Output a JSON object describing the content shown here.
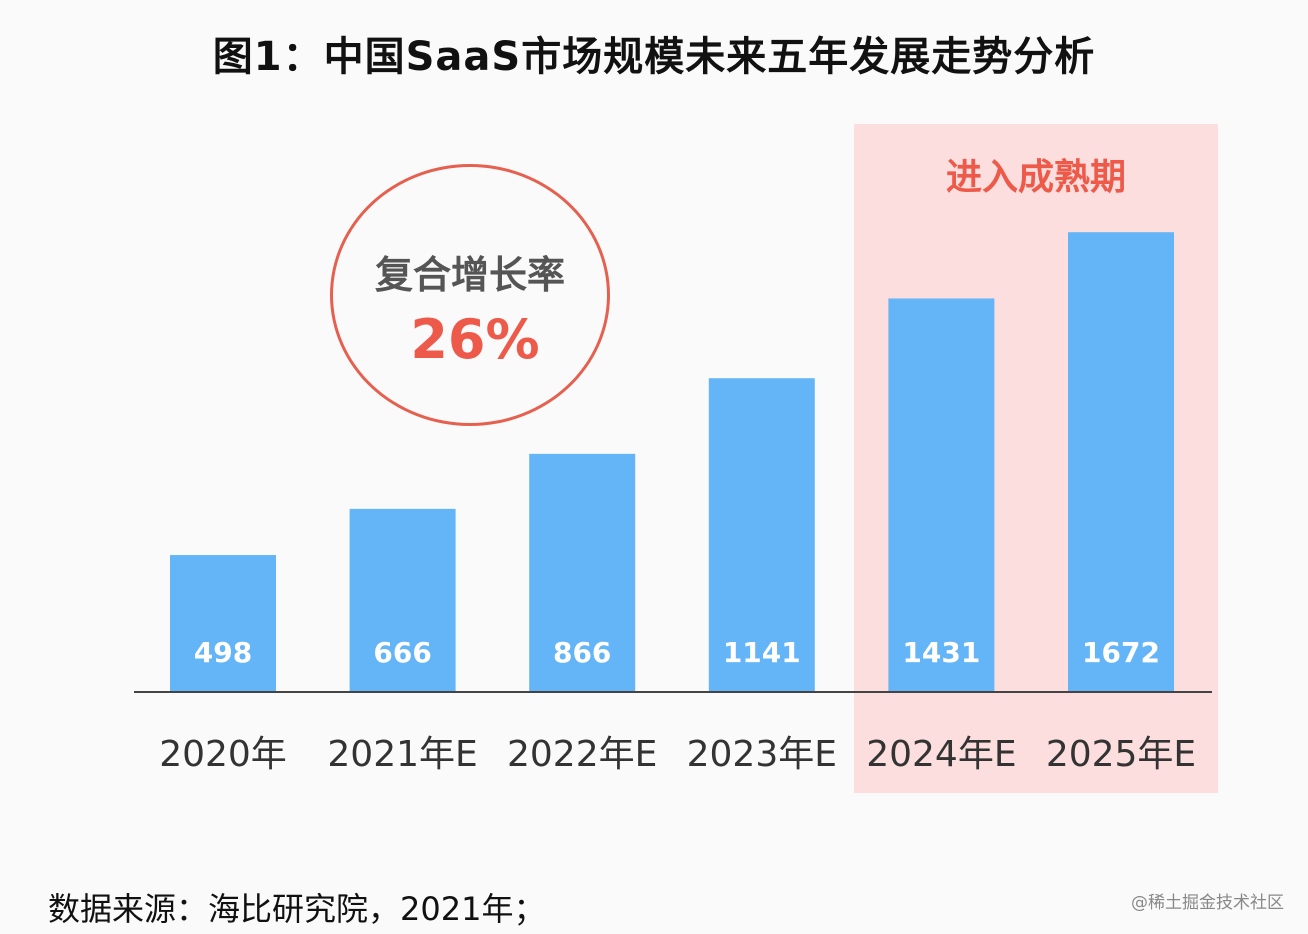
{
  "chart_data": {
    "type": "bar",
    "title": "图1：中国SaaS市场规模未来五年发展走势分析",
    "categories": [
      "2020年",
      "2021年E",
      "2022年E",
      "2023年E",
      "2024年E",
      "2025年E"
    ],
    "values": [
      498,
      666,
      866,
      1141,
      1431,
      1672
    ],
    "ylim": [
      0,
      1800
    ],
    "grid": false,
    "bar_color": "#63b5f7",
    "highlight": {
      "label": "进入成熟期",
      "categories": [
        "2024年E",
        "2025年E"
      ],
      "color": "#fbdedd",
      "text_color": "#ee5a4a"
    },
    "annotation": {
      "label": "复合增长率",
      "value": "26%",
      "color": "#ee5a4a"
    }
  },
  "source": "数据来源：海比研究院，2021年；",
  "watermark": "@稀土掘金技术社区"
}
